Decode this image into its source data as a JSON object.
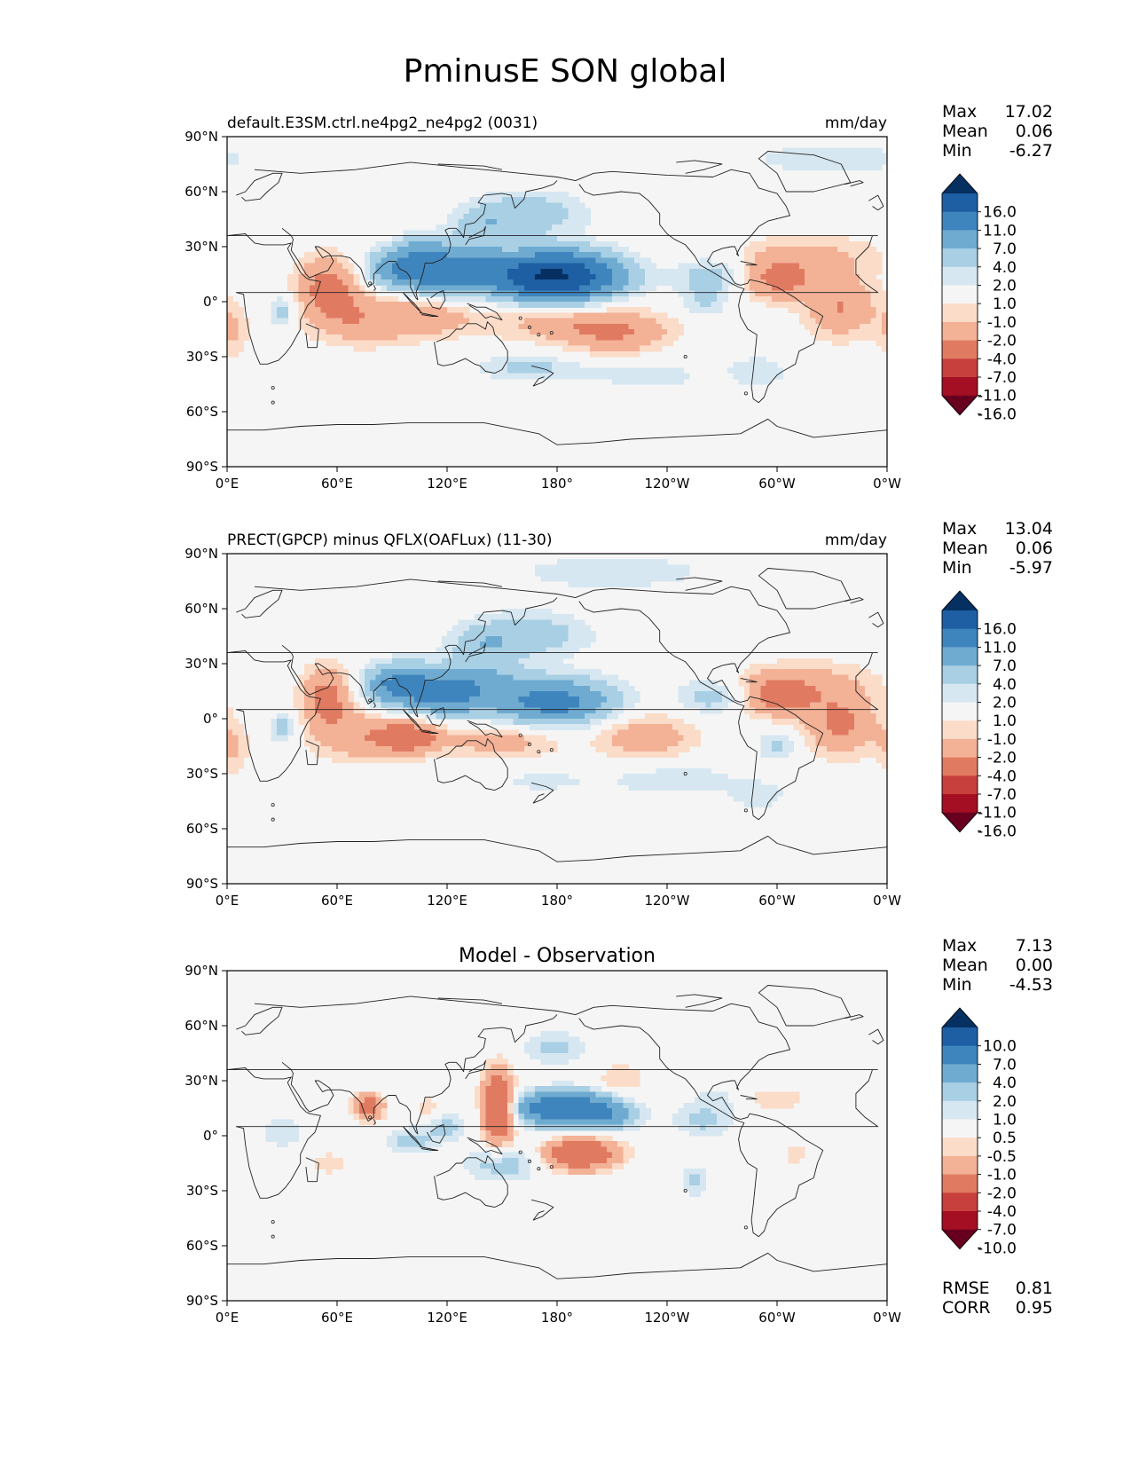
{
  "figure": {
    "title": "PminusE SON global"
  },
  "colors": {
    "ocean": "#f5f5f5",
    "coast": "#222222",
    "cmap": [
      "#67001f",
      "#a50f23",
      "#c8403d",
      "#e07b62",
      "#f3b196",
      "#fbdcc8",
      "#f5f5f5",
      "#d6e7f1",
      "#a8cfe4",
      "#6fabd1",
      "#3f85bd",
      "#1e5ea3",
      "#053061"
    ]
  },
  "chart_data": [
    {
      "type": "heatmap",
      "title_left": "default.E3SM.ctrl.ne4pg2_ne4pg2 (0031)",
      "title_right": "mm/day",
      "title_center": "",
      "xlabel": "",
      "ylabel": "",
      "xticks": [
        "0°E",
        "60°E",
        "120°E",
        "180°",
        "120°W",
        "60°W",
        "0°W"
      ],
      "yticks": [
        "90°N",
        "60°N",
        "30°N",
        "0°",
        "30°S",
        "60°S",
        "90°S"
      ],
      "xlim": [
        0,
        360
      ],
      "ylim": [
        -90,
        90
      ],
      "stats": {
        "Max": "17.02",
        "Mean": "0.06",
        "Min": "-6.27"
      },
      "colorbar_ticks": [
        "16.0",
        "11.0",
        "7.0",
        "4.0",
        "2.0",
        "1.0",
        "-1.0",
        "-2.0",
        "-4.0",
        "-7.0",
        "-11.0",
        "-16.0"
      ],
      "levels": [
        -16,
        -11,
        -7,
        -4,
        -2,
        -1,
        1,
        2,
        4,
        7,
        11,
        16
      ],
      "blobs": [
        {
          "lon": 178,
          "lat": 14,
          "a": 17,
          "sx": 24,
          "sy": 9
        },
        {
          "lon": 100,
          "lat": 18,
          "a": 9,
          "sx": 15,
          "sy": 8
        },
        {
          "lon": 132,
          "lat": 20,
          "a": 6,
          "sx": 14,
          "sy": 8
        },
        {
          "lon": 120,
          "lat": 10,
          "a": 4,
          "sx": 10,
          "sy": 6
        },
        {
          "lon": 165,
          "lat": 48,
          "a": 3,
          "sx": 22,
          "sy": 9
        },
        {
          "lon": 140,
          "lat": 42,
          "a": 2.5,
          "sx": 12,
          "sy": 7
        },
        {
          "lon": 108,
          "lat": 30,
          "a": 2.5,
          "sx": 9,
          "sy": 6
        },
        {
          "lon": 330,
          "lat": 78,
          "a": 1.8,
          "sx": 35,
          "sy": 6
        },
        {
          "lon": 265,
          "lat": 14,
          "a": 3,
          "sx": 14,
          "sy": 7
        },
        {
          "lon": 260,
          "lat": -1,
          "a": 2,
          "sx": 9,
          "sy": 7
        },
        {
          "lon": 165,
          "lat": -36,
          "a": 2.4,
          "sx": 22,
          "sy": 5
        },
        {
          "lon": 230,
          "lat": -40,
          "a": 1.5,
          "sx": 24,
          "sy": 7
        },
        {
          "lon": 30,
          "lat": -5,
          "a": 3,
          "sx": 5,
          "sy": 6
        },
        {
          "lon": 290,
          "lat": -38,
          "a": 1.8,
          "sx": 12,
          "sy": 6
        },
        {
          "lon": 55,
          "lat": 8,
          "a": -5,
          "sx": 12,
          "sy": 12
        },
        {
          "lon": 75,
          "lat": -10,
          "a": -3.2,
          "sx": 20,
          "sy": 10
        },
        {
          "lon": 110,
          "lat": -8,
          "a": -2.6,
          "sx": 18,
          "sy": 8
        },
        {
          "lon": 190,
          "lat": -12,
          "a": -3.1,
          "sx": 35,
          "sy": 7
        },
        {
          "lon": 212,
          "lat": -20,
          "a": -2.8,
          "sx": 20,
          "sy": 8
        },
        {
          "lon": 300,
          "lat": 12,
          "a": -4.5,
          "sx": 14,
          "sy": 8
        },
        {
          "lon": 335,
          "lat": -3,
          "a": -4,
          "sx": 14,
          "sy": 12
        },
        {
          "lon": 318,
          "lat": 25,
          "a": -2.2,
          "sx": 30,
          "sy": 9
        },
        {
          "lon": 3,
          "lat": -16,
          "a": -2.2,
          "sx": 6,
          "sy": 10
        },
        {
          "lon": 155,
          "lat": 23,
          "a": -1.2,
          "sx": 6,
          "sy": 4
        }
      ]
    },
    {
      "type": "heatmap",
      "title_left": "PRECT(GPCP) minus QFLX(OAFLux) (11-30)",
      "title_right": "mm/day",
      "title_center": "",
      "xlabel": "",
      "ylabel": "",
      "xticks": [
        "0°E",
        "60°E",
        "120°E",
        "180°",
        "120°W",
        "60°W",
        "0°W"
      ],
      "yticks": [
        "90°N",
        "60°N",
        "30°N",
        "0°",
        "30°S",
        "60°S",
        "90°S"
      ],
      "xlim": [
        0,
        360
      ],
      "ylim": [
        -90,
        90
      ],
      "stats": {
        "Max": "13.04",
        "Mean": "0.06",
        "Min": "-5.97"
      },
      "colorbar_ticks": [
        "16.0",
        "11.0",
        "7.0",
        "4.0",
        "2.0",
        "1.0",
        "-1.0",
        "-2.0",
        "-4.0",
        "-7.0",
        "-11.0",
        "-16.0"
      ],
      "levels": [
        -16,
        -11,
        -7,
        -4,
        -2,
        -1,
        1,
        2,
        4,
        7,
        11,
        16
      ],
      "blobs": [
        {
          "lon": 95,
          "lat": 18,
          "a": 9,
          "sx": 14,
          "sy": 8
        },
        {
          "lon": 120,
          "lat": 10,
          "a": 5,
          "sx": 12,
          "sy": 7
        },
        {
          "lon": 135,
          "lat": 20,
          "a": 5,
          "sx": 16,
          "sy": 8
        },
        {
          "lon": 178,
          "lat": 9,
          "a": 8.5,
          "sx": 24,
          "sy": 9
        },
        {
          "lon": 165,
          "lat": 46,
          "a": 3,
          "sx": 24,
          "sy": 9
        },
        {
          "lon": 140,
          "lat": 40,
          "a": 2.5,
          "sx": 13,
          "sy": 7
        },
        {
          "lon": 210,
          "lat": 80,
          "a": 1.8,
          "sx": 40,
          "sy": 7
        },
        {
          "lon": 265,
          "lat": 12,
          "a": 3,
          "sx": 14,
          "sy": 7
        },
        {
          "lon": 300,
          "lat": -14,
          "a": 2.4,
          "sx": 8,
          "sy": 6
        },
        {
          "lon": 240,
          "lat": -32,
          "a": 1.8,
          "sx": 28,
          "sy": 8
        },
        {
          "lon": 170,
          "lat": -34,
          "a": 1.3,
          "sx": 18,
          "sy": 5
        },
        {
          "lon": 30,
          "lat": -5,
          "a": 3,
          "sx": 5,
          "sy": 6
        },
        {
          "lon": 290,
          "lat": -42,
          "a": 1.5,
          "sx": 12,
          "sy": 6
        },
        {
          "lon": 55,
          "lat": 12,
          "a": -5,
          "sx": 10,
          "sy": 12
        },
        {
          "lon": 75,
          "lat": -10,
          "a": -3.2,
          "sx": 20,
          "sy": 10
        },
        {
          "lon": 100,
          "lat": -10,
          "a": -5,
          "sx": 12,
          "sy": 6
        },
        {
          "lon": 150,
          "lat": -12,
          "a": -3,
          "sx": 22,
          "sy": 7
        },
        {
          "lon": 228,
          "lat": -10,
          "a": -3.4,
          "sx": 20,
          "sy": 10
        },
        {
          "lon": 300,
          "lat": 12,
          "a": -4.5,
          "sx": 14,
          "sy": 8
        },
        {
          "lon": 335,
          "lat": -3,
          "a": -4.5,
          "sx": 14,
          "sy": 12
        },
        {
          "lon": 318,
          "lat": 20,
          "a": -2.2,
          "sx": 28,
          "sy": 9
        },
        {
          "lon": 3,
          "lat": -16,
          "a": -2.2,
          "sx": 6,
          "sy": 10
        }
      ]
    },
    {
      "type": "heatmap",
      "title_left": "",
      "title_right": "",
      "title_center": "Model - Observation",
      "xlabel": "",
      "ylabel": "",
      "xticks": [
        "0°E",
        "60°E",
        "120°E",
        "180°",
        "120°W",
        "60°W",
        "0°W"
      ],
      "yticks": [
        "90°N",
        "60°N",
        "30°N",
        "0°",
        "30°S",
        "60°S",
        "90°S"
      ],
      "xlim": [
        0,
        360
      ],
      "ylim": [
        -90,
        90
      ],
      "stats": {
        "Max": "7.13",
        "Mean": "0.00",
        "Min": "-4.53"
      },
      "colorbar_ticks": [
        "10.0",
        "7.0",
        "4.0",
        "2.0",
        "1.0",
        "0.5",
        "-0.5",
        "-1.0",
        "-2.0",
        "-4.0",
        "-7.0",
        "-10.0"
      ],
      "levels": [
        -10,
        -7,
        -4,
        -2,
        -1,
        -0.5,
        0.5,
        1,
        2,
        4,
        7,
        10
      ],
      "rmse": {
        "RMSE": "0.81",
        "CORR": "0.95"
      },
      "blobs": [
        {
          "lon": 185,
          "lat": 15,
          "a": 7.1,
          "sx": 18,
          "sy": 6
        },
        {
          "lon": 210,
          "lat": 10,
          "a": 1.8,
          "sx": 10,
          "sy": 5
        },
        {
          "lon": 178,
          "lat": 48,
          "a": 1.3,
          "sx": 12,
          "sy": 6
        },
        {
          "lon": 150,
          "lat": -15,
          "a": 1.6,
          "sx": 14,
          "sy": 7
        },
        {
          "lon": 100,
          "lat": -3,
          "a": 1.4,
          "sx": 10,
          "sy": 5
        },
        {
          "lon": 120,
          "lat": 5,
          "a": 1.2,
          "sx": 8,
          "sy": 5
        },
        {
          "lon": 30,
          "lat": 2,
          "a": 1.0,
          "sx": 8,
          "sy": 6
        },
        {
          "lon": 260,
          "lat": 8,
          "a": 1.2,
          "sx": 12,
          "sy": 6
        },
        {
          "lon": 255,
          "lat": -25,
          "a": 1.2,
          "sx": 5,
          "sy": 6
        },
        {
          "lon": 268,
          "lat": 20,
          "a": 0.7,
          "sx": 12,
          "sy": 5
        },
        {
          "lon": 148,
          "lat": 15,
          "a": -4.5,
          "sx": 6,
          "sy": 14
        },
        {
          "lon": 193,
          "lat": -10,
          "a": -4,
          "sx": 14,
          "sy": 6
        },
        {
          "lon": 77,
          "lat": 16,
          "a": -3,
          "sx": 6,
          "sy": 5
        },
        {
          "lon": 55,
          "lat": -15,
          "a": -1,
          "sx": 6,
          "sy": 4
        },
        {
          "lon": 215,
          "lat": 30,
          "a": -1,
          "sx": 10,
          "sy": 7
        },
        {
          "lon": 298,
          "lat": 20,
          "a": -0.9,
          "sx": 14,
          "sy": 5
        },
        {
          "lon": 310,
          "lat": -10,
          "a": -0.9,
          "sx": 5,
          "sy": 4
        },
        {
          "lon": 110,
          "lat": 15,
          "a": -0.8,
          "sx": 5,
          "sy": 5
        }
      ]
    }
  ]
}
